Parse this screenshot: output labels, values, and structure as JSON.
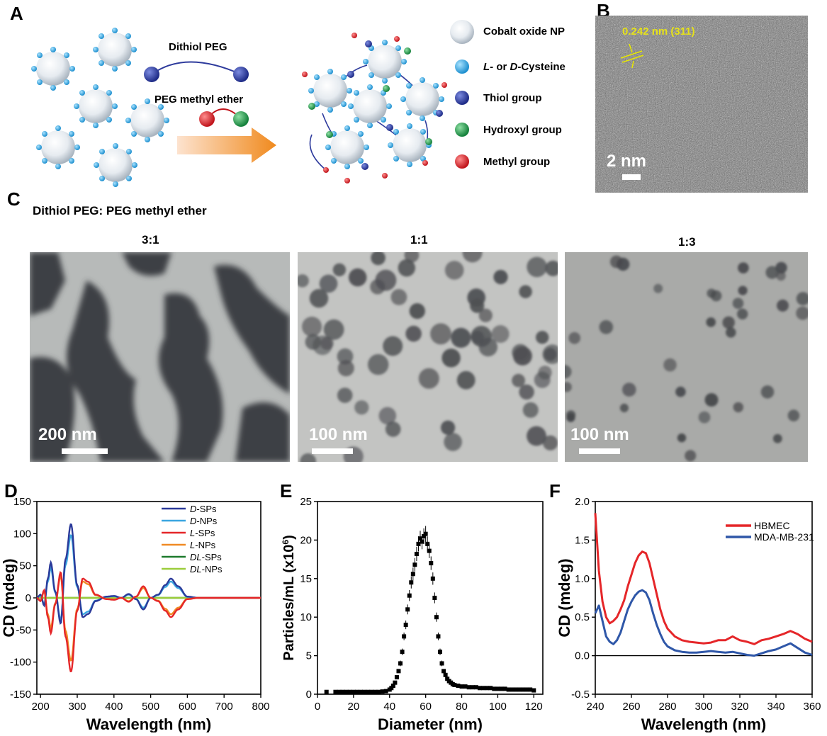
{
  "panels": {
    "A": "A",
    "B": "B",
    "C": "C",
    "D": "D",
    "E": "E",
    "F": "F"
  },
  "schematic": {
    "dithiol_label": "Dithiol PEG",
    "methyl_ether_label": "PEG methyl ether",
    "legend": [
      {
        "label": "Cobalt oxide NP",
        "color": "#e8edf2",
        "icon": "nanoparticle-icon"
      },
      {
        "label_prefix": "L",
        "label_mid": "- or ",
        "label_prefix2": "D",
        "label_rest": "-Cysteine",
        "color": "#33a8e0",
        "icon": "cysteine-icon"
      },
      {
        "label": "Thiol group",
        "color": "#2d3a9c",
        "icon": "thiol-icon"
      },
      {
        "label": "Hydroxyl group",
        "color": "#1f9e4a",
        "icon": "hydroxyl-icon"
      },
      {
        "label": "Methyl group",
        "color": "#e3232a",
        "icon": "methyl-icon"
      }
    ]
  },
  "hrtem": {
    "lattice_label": "0.242 nm (311)",
    "scale": "2 nm"
  },
  "tem": {
    "heading": "Dithiol PEG: PEG methyl ether",
    "images": [
      {
        "ratio": "3:1",
        "scale": "200 nm"
      },
      {
        "ratio": "1:1",
        "scale": "100 nm"
      },
      {
        "ratio": "1:3",
        "scale": "100 nm"
      }
    ]
  },
  "chart_data": [
    {
      "type": "line",
      "xlabel": "Wavelength (nm)",
      "ylabel": "CD (mdeg)",
      "xlim": [
        190,
        800
      ],
      "ylim": [
        -150,
        150
      ],
      "xticks": [
        200,
        300,
        400,
        500,
        600,
        700,
        800
      ],
      "yticks": [
        -150,
        -100,
        -50,
        0,
        50,
        100,
        150
      ],
      "legend_position": "top-right",
      "series": [
        {
          "name_prefix": "D",
          "name_rest": "-SPs",
          "color": "#2b3a9a",
          "sign": 1,
          "scale": 1.0
        },
        {
          "name_prefix": "D",
          "name_rest": "-NPs",
          "color": "#3aa6e0",
          "sign": 1,
          "scale": 0.85
        },
        {
          "name_prefix": "L",
          "name_rest": "-SPs",
          "color": "#e52629",
          "sign": -1,
          "scale": 1.0
        },
        {
          "name_prefix": "L",
          "name_rest": "-NPs",
          "color": "#f08a24",
          "sign": -1,
          "scale": 0.85
        },
        {
          "name_prefix": "DL",
          "name_rest": "-SPs",
          "color": "#1d7a2c",
          "sign": 0,
          "scale": 0
        },
        {
          "name_prefix": "DL",
          "name_rest": "-NPs",
          "color": "#9ccd3c",
          "sign": 0,
          "scale": 0
        }
      ],
      "base_profile": {
        "x": [
          190,
          200,
          210,
          220,
          228,
          240,
          255,
          268,
          283,
          300,
          315,
          330,
          350,
          380,
          400,
          420,
          440,
          460,
          480,
          500,
          520,
          540,
          555,
          575,
          600,
          630,
          660,
          700,
          750,
          800
        ],
        "y": [
          0,
          5,
          -12,
          30,
          55,
          10,
          -40,
          60,
          115,
          20,
          -30,
          -25,
          -5,
          2,
          3,
          0,
          6,
          -2,
          -18,
          0,
          5,
          20,
          30,
          18,
          2,
          0,
          0,
          0,
          0,
          0
        ]
      }
    },
    {
      "type": "scatter",
      "xlabel": "Diameter (nm)",
      "ylabel_main": "Particles/mL (x10",
      "ylabel_sup": "6",
      "ylabel_end": ")",
      "xlim": [
        0,
        125
      ],
      "ylim": [
        0,
        25
      ],
      "xticks": [
        0,
        20,
        40,
        60,
        80,
        100,
        120
      ],
      "yticks": [
        0,
        5,
        10,
        15,
        20,
        25
      ],
      "x": [
        5,
        10,
        12,
        14,
        16,
        18,
        20,
        22,
        24,
        26,
        28,
        30,
        32,
        34,
        36,
        38,
        40,
        41,
        42,
        43,
        44,
        45,
        46,
        47,
        48,
        49,
        50,
        51,
        52,
        53,
        54,
        55,
        56,
        57,
        58,
        59,
        60,
        61,
        62,
        63,
        64,
        65,
        66,
        67,
        68,
        69,
        70,
        71,
        72,
        73,
        74,
        75,
        76,
        78,
        80,
        82,
        84,
        86,
        88,
        90,
        92,
        94,
        96,
        98,
        100,
        102,
        104,
        106,
        108,
        110,
        112,
        114,
        116,
        118,
        120
      ],
      "y": [
        0.3,
        0.3,
        0.3,
        0.3,
        0.3,
        0.3,
        0.3,
        0.3,
        0.3,
        0.3,
        0.3,
        0.3,
        0.3,
        0.3,
        0.35,
        0.4,
        0.6,
        0.8,
        1.1,
        1.5,
        2.2,
        3.0,
        4.0,
        5.5,
        7.5,
        9.0,
        11.0,
        12.8,
        14.5,
        15.6,
        16.8,
        18.2,
        19.5,
        20.2,
        19.8,
        20.5,
        20.8,
        19.5,
        18.6,
        17.0,
        15.0,
        12.5,
        10.0,
        7.5,
        5.5,
        4.0,
        3.0,
        2.5,
        2.0,
        1.7,
        1.5,
        1.3,
        1.2,
        1.1,
        1.0,
        1.0,
        0.9,
        0.9,
        0.9,
        0.8,
        0.8,
        0.8,
        0.8,
        0.7,
        0.7,
        0.7,
        0.7,
        0.6,
        0.6,
        0.6,
        0.6,
        0.6,
        0.6,
        0.6,
        0.5
      ]
    },
    {
      "type": "line",
      "xlabel": "Wavelength (nm)",
      "ylabel": "CD (mdeg)",
      "xlim": [
        240,
        360
      ],
      "ylim": [
        -0.5,
        2.0
      ],
      "xticks": [
        240,
        260,
        280,
        300,
        320,
        340,
        360
      ],
      "yticks": [
        -0.5,
        0.0,
        0.5,
        1.0,
        1.5,
        2.0
      ],
      "ytick_labels": [
        "-0.5",
        "0.0",
        "0.5",
        "1.0",
        "1.5",
        "2.0"
      ],
      "legend_position": "top-right",
      "series": [
        {
          "name": "HBMEC",
          "color": "#e52629",
          "x": [
            240,
            242,
            244,
            246,
            248,
            250,
            252,
            254,
            256,
            258,
            260,
            262,
            264,
            266,
            268,
            270,
            272,
            274,
            276,
            278,
            280,
            284,
            288,
            292,
            296,
            300,
            304,
            308,
            312,
            316,
            320,
            324,
            328,
            332,
            336,
            340,
            344,
            348,
            352,
            356,
            360
          ],
          "y": [
            1.85,
            1.1,
            0.7,
            0.5,
            0.42,
            0.45,
            0.5,
            0.6,
            0.72,
            0.9,
            1.05,
            1.2,
            1.3,
            1.35,
            1.33,
            1.2,
            1.0,
            0.8,
            0.6,
            0.45,
            0.35,
            0.25,
            0.2,
            0.18,
            0.17,
            0.16,
            0.17,
            0.2,
            0.2,
            0.25,
            0.2,
            0.18,
            0.15,
            0.2,
            0.22,
            0.25,
            0.28,
            0.32,
            0.28,
            0.22,
            0.18
          ]
        },
        {
          "name": "MDA-MB-231",
          "color": "#2f57a8",
          "x": [
            240,
            242,
            244,
            246,
            248,
            250,
            252,
            254,
            256,
            258,
            260,
            262,
            264,
            266,
            268,
            270,
            272,
            274,
            276,
            278,
            280,
            284,
            288,
            292,
            296,
            300,
            304,
            308,
            312,
            316,
            320,
            324,
            328,
            332,
            336,
            340,
            344,
            348,
            352,
            356,
            360
          ],
          "y": [
            0.55,
            0.65,
            0.45,
            0.25,
            0.18,
            0.15,
            0.2,
            0.3,
            0.45,
            0.6,
            0.7,
            0.78,
            0.83,
            0.85,
            0.82,
            0.72,
            0.55,
            0.4,
            0.28,
            0.18,
            0.12,
            0.07,
            0.05,
            0.04,
            0.04,
            0.05,
            0.06,
            0.05,
            0.04,
            0.05,
            0.03,
            0.01,
            0.0,
            0.03,
            0.06,
            0.08,
            0.12,
            0.16,
            0.1,
            0.04,
            0.01
          ]
        }
      ]
    }
  ]
}
